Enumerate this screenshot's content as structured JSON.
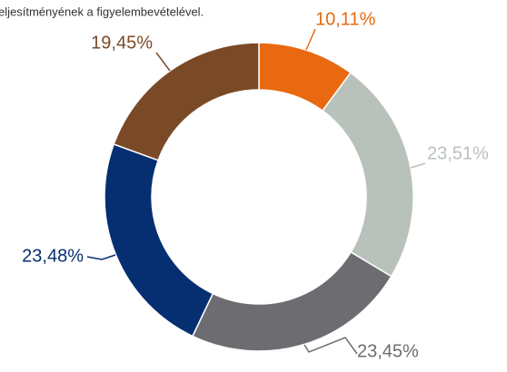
{
  "chart_data": {
    "type": "donut",
    "title": "eljesítményének a figyelembevételével.",
    "categories": [
      null,
      null,
      null,
      null,
      null
    ],
    "values": [
      10.11,
      23.51,
      23.45,
      23.48,
      19.45
    ],
    "value_labels": [
      "10,11%",
      "23,51%",
      "23,45%",
      "23,48%",
      "19,45%"
    ],
    "colors": [
      "#e8690f",
      "#b9c1bb",
      "#6d6d71",
      "#062f72",
      "#7a4a27"
    ]
  }
}
